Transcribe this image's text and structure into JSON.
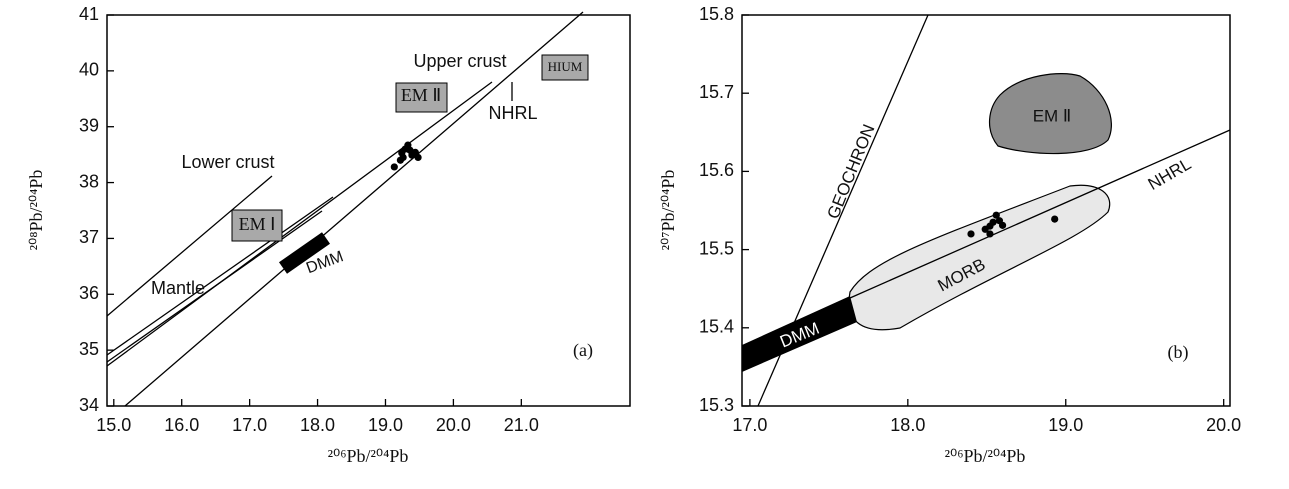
{
  "chart_data": [
    {
      "type": "scatter",
      "panel_label": "(a)",
      "x_label": "²⁰⁶Pb/²⁰⁴Pb",
      "y_label": "²⁰⁸Pb/²⁰⁴Pb",
      "xlim": [
        14.9,
        22.6
      ],
      "ylim": [
        34,
        41
      ],
      "xticks": [
        {
          "value": 15,
          "label": "15.0"
        },
        {
          "value": 16,
          "label": "16.0"
        },
        {
          "value": 17,
          "label": "17.0"
        },
        {
          "value": 18,
          "label": "18.0"
        },
        {
          "value": 19,
          "label": "19.0"
        },
        {
          "value": 20,
          "label": "20.0"
        },
        {
          "value": 21,
          "label": "21.0"
        }
      ],
      "yticks": [
        34,
        35,
        36,
        37,
        38,
        39,
        40,
        41
      ],
      "series": [
        {
          "color": "#000000",
          "x": [
            19.13,
            19.22,
            19.24,
            19.29,
            19.33,
            19.36,
            19.39,
            19.44,
            19.48,
            19.26
          ],
          "values": [
            38.28,
            38.4,
            38.53,
            38.6,
            38.67,
            38.58,
            38.49,
            38.54,
            38.45,
            38.45
          ]
        }
      ],
      "annotations": [
        "Upper crust",
        "Lower crust",
        "Mantle",
        "NHRL",
        "EM Ⅰ",
        "EM Ⅱ",
        "HIUM",
        "DMM"
      ]
    },
    {
      "type": "scatter",
      "panel_label": "(b)",
      "x_label": "²⁰⁶Pb/²⁰⁴Pb",
      "y_label": "²⁰⁷Pb/²⁰⁴Pb",
      "xlim": [
        16.95,
        20.04
      ],
      "ylim": [
        15.3,
        15.8
      ],
      "xticks": [
        {
          "value": 17,
          "label": "17.0"
        },
        {
          "value": 18,
          "label": "18.0"
        },
        {
          "value": 19,
          "label": "19.0"
        },
        {
          "value": 20,
          "label": "20.0"
        }
      ],
      "yticks": [
        15.3,
        15.4,
        15.5,
        15.6,
        15.7,
        15.8
      ],
      "series": [
        {
          "color": "#000000",
          "x": [
            18.4,
            18.49,
            18.52,
            18.54,
            18.56,
            18.58,
            18.6,
            18.52,
            18.93
          ],
          "values": [
            15.52,
            15.526,
            15.53,
            15.535,
            15.544,
            15.537,
            15.531,
            15.52,
            15.539
          ]
        }
      ],
      "annotations": [
        "GEOCHRON",
        "NHRL",
        "EM Ⅱ",
        "MORB",
        "DMM"
      ]
    }
  ]
}
